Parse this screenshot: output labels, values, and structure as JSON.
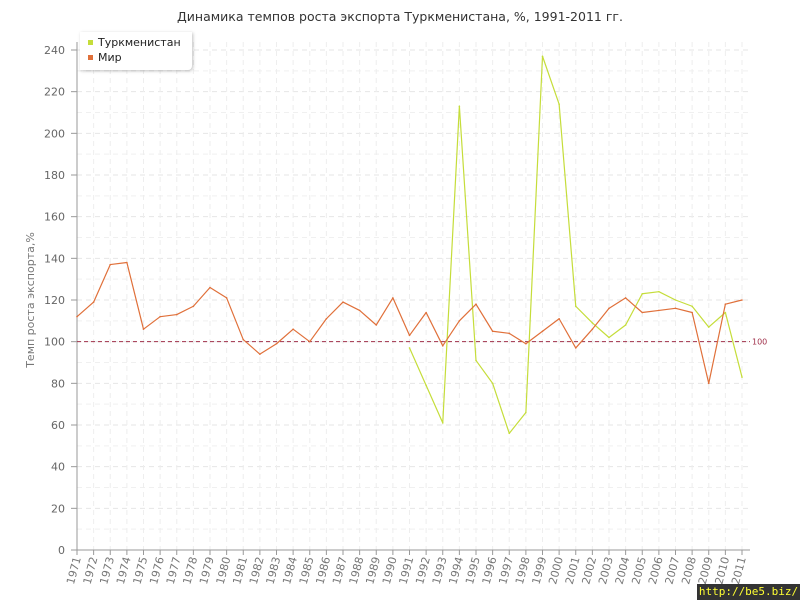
{
  "title": "Динамика темпов роста экспорта Туркменистана, %, 1991-2011 гг.",
  "watermark": "http://be5.biz/",
  "chart_data": {
    "type": "line",
    "title": "Динамика темпов роста экспорта Туркменистана, %, 1991-2011 гг.",
    "xlabel": "",
    "ylabel": "Темп роста экспорта,%",
    "ylim": [
      0,
      240
    ],
    "yticks": [
      0,
      20,
      40,
      60,
      80,
      100,
      120,
      140,
      160,
      180,
      200,
      220,
      240
    ],
    "grid": true,
    "legend_position": "top-left",
    "x": [
      1971,
      1972,
      1973,
      1974,
      1975,
      1976,
      1977,
      1978,
      1979,
      1980,
      1981,
      1982,
      1983,
      1984,
      1985,
      1986,
      1987,
      1988,
      1989,
      1990,
      1991,
      1992,
      1993,
      1994,
      1995,
      1996,
      1997,
      1998,
      1999,
      2000,
      2001,
      2002,
      2003,
      2004,
      2005,
      2006,
      2007,
      2008,
      2009,
      2010,
      2011
    ],
    "series": [
      {
        "name": "Туркменистан",
        "color": "#c5dd3a",
        "values": [
          null,
          null,
          null,
          null,
          null,
          null,
          null,
          null,
          null,
          null,
          null,
          null,
          null,
          null,
          null,
          null,
          null,
          null,
          null,
          null,
          97,
          79,
          61,
          213,
          91,
          80,
          56,
          66,
          237,
          214,
          117,
          109,
          102,
          108,
          123,
          124,
          120,
          117,
          107,
          114,
          83
        ]
      },
      {
        "name": "Мир",
        "color": "#e0703a",
        "values": [
          112,
          119,
          137,
          138,
          106,
          112,
          113,
          117,
          126,
          121,
          101,
          94,
          99,
          106,
          100,
          111,
          119,
          115,
          108,
          121,
          103,
          114,
          98,
          110,
          118,
          105,
          104,
          99,
          105,
          111,
          97,
          106,
          116,
          121,
          114,
          115,
          116,
          114,
          80,
          118,
          120
        ]
      }
    ],
    "reference_line": {
      "value": 100,
      "label": "100",
      "color": "#a0304a"
    }
  }
}
